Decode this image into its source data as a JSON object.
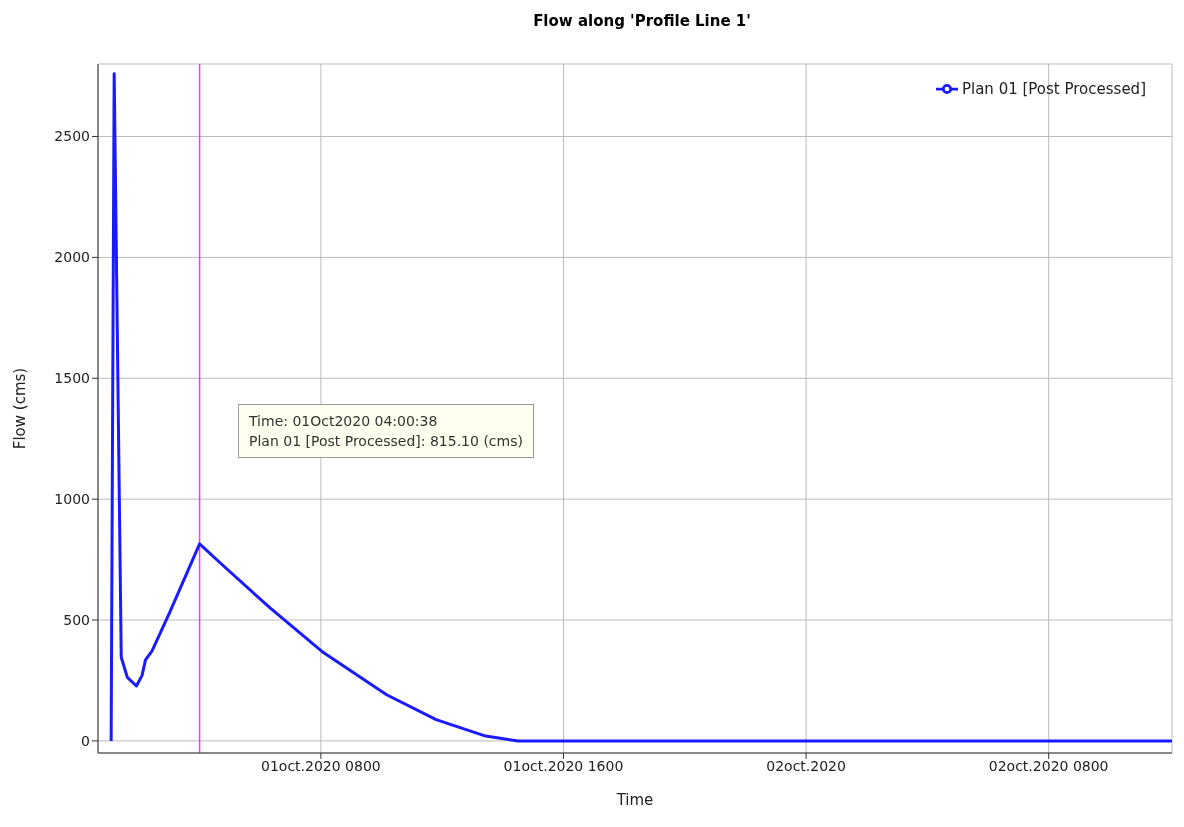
{
  "chart_data": {
    "type": "line",
    "title": "Flow along 'Profile Line 1'",
    "xlabel": "Time",
    "ylabel": "Flow (cms)",
    "x": [
      "2020-10-01T01:05",
      "2020-10-01T01:11",
      "2020-10-01T01:25",
      "2020-10-01T01:37",
      "2020-10-01T01:55",
      "2020-10-01T02:06",
      "2020-10-01T02:13",
      "2020-10-01T02:26",
      "2020-10-01T03:02",
      "2020-10-01T04:00",
      "2020-10-01T04:41",
      "2020-10-01T06:20",
      "2020-10-01T08:02",
      "2020-10-01T10:10",
      "2020-10-01T11:48",
      "2020-10-01T13:26",
      "2020-10-01T14:30",
      "2020-10-02T12:04"
    ],
    "series": [
      {
        "name": "Plan 01 [Post Processed]",
        "color": "#1a1aff",
        "values": [
          0,
          2760,
          346,
          263,
          227,
          270,
          335,
          372,
          537,
          815.1,
          736,
          549,
          370,
          191,
          88,
          20,
          0,
          0
        ]
      }
    ],
    "xlim": [
      "2020-10-01T00:39",
      "2020-10-02T12:04"
    ],
    "xticks": [
      {
        "value": "2020-10-01T08:00",
        "label": "01oct.2020 0800"
      },
      {
        "value": "2020-10-01T16:00",
        "label": "01oct.2020 1600"
      },
      {
        "value": "2020-10-02T00:00",
        "label": "02oct.2020"
      },
      {
        "value": "2020-10-02T08:00",
        "label": "02oct.2020 0800"
      }
    ],
    "ylim": [
      -50,
      2800
    ],
    "yticks": [
      0,
      500,
      1000,
      1500,
      2000,
      2500
    ],
    "ref_lines": [
      {
        "axis": "x",
        "value": "2020-10-01T04:00",
        "color": "#ff33ff"
      }
    ],
    "annotations": [
      "Time:  01Oct2020  04:00:38",
      "Plan 01 [Post Processed]: 815.10 (cms)"
    ],
    "grid": true,
    "legend": "top right"
  }
}
